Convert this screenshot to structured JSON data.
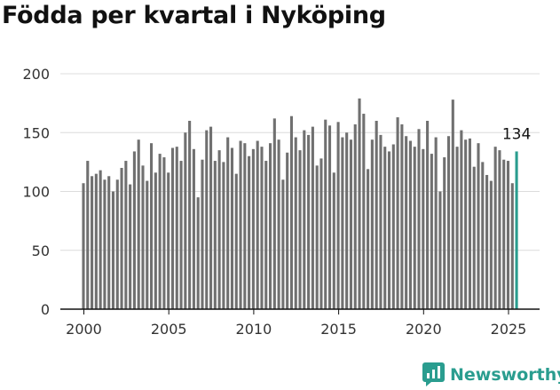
{
  "title": "Födda per kvartal i Nyköping",
  "brand": {
    "name": "Newsworthy",
    "color": "#2a9d8f",
    "icon": "newsworthy-logo-icon"
  },
  "chart_data": {
    "type": "bar",
    "title": "Födda per kvartal i Nyköping",
    "xlabel": "",
    "ylabel": "",
    "xlim": [
      1999,
      2026.5
    ],
    "ylim": [
      0,
      200
    ],
    "yticks": [
      0,
      50,
      100,
      150,
      200
    ],
    "xticks": [
      2000,
      2005,
      2010,
      2015,
      2020,
      2025
    ],
    "grid": "horizontal",
    "bar_color": "#707070",
    "highlight_color": "#2a9d8f",
    "highlight_label": "134",
    "series": [
      {
        "start_year": 2000,
        "values": [
          107,
          126,
          113,
          115,
          118,
          110,
          113,
          100,
          110,
          120,
          126,
          106,
          134,
          144,
          122,
          109,
          141,
          116,
          132,
          129,
          116,
          137,
          138,
          126,
          150,
          160,
          136,
          95,
          127,
          152,
          155,
          126,
          135,
          125,
          146,
          137,
          115,
          143,
          141,
          130,
          136,
          143,
          138,
          126,
          141,
          162,
          144,
          110,
          133,
          164,
          146,
          135,
          152,
          148,
          155,
          122,
          128,
          161,
          156,
          116,
          159,
          146,
          150,
          144,
          157,
          179,
          166,
          119,
          144,
          160,
          148,
          138,
          134,
          140,
          163,
          157,
          147,
          143,
          138,
          153,
          136,
          160,
          132,
          146,
          100,
          129,
          147,
          178,
          138,
          152,
          144,
          145,
          121,
          141,
          125,
          114,
          109,
          138,
          135,
          127,
          126,
          107,
          134
        ]
      }
    ]
  }
}
